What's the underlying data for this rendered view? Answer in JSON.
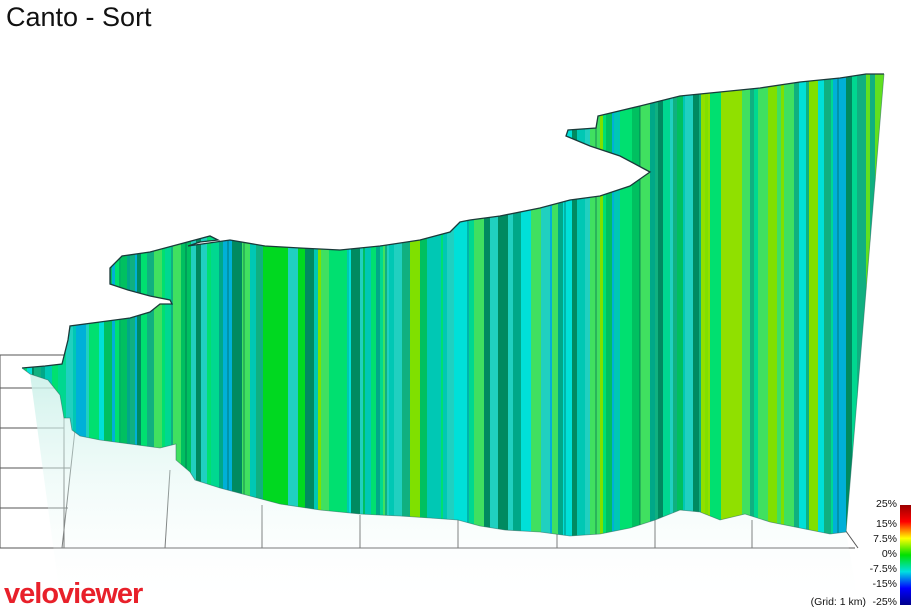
{
  "title": "Canto - Sort",
  "logo": {
    "part1": "velo",
    "part2": "viewer"
  },
  "legend": {
    "labels": [
      "25%",
      "15%",
      "7.5%",
      "0%",
      "-7.5%",
      "-15%",
      "-25%"
    ],
    "gradient": [
      "#9b0000",
      "#ff0000",
      "#ffff00",
      "#00e000",
      "#00e0e0",
      "#0000ff",
      "#00008b"
    ]
  },
  "grid_note": "(Grid: 1 km)",
  "colors": {
    "grid_line": "#555555",
    "outline": "#1a3a3a",
    "palette": [
      "#00c8b4",
      "#00d890",
      "#00e070",
      "#00c060",
      "#10b080",
      "#20d0c0",
      "#00e0d8",
      "#40e060",
      "#80e000",
      "#00a888",
      "#008a60",
      "#00b0d8"
    ]
  }
}
